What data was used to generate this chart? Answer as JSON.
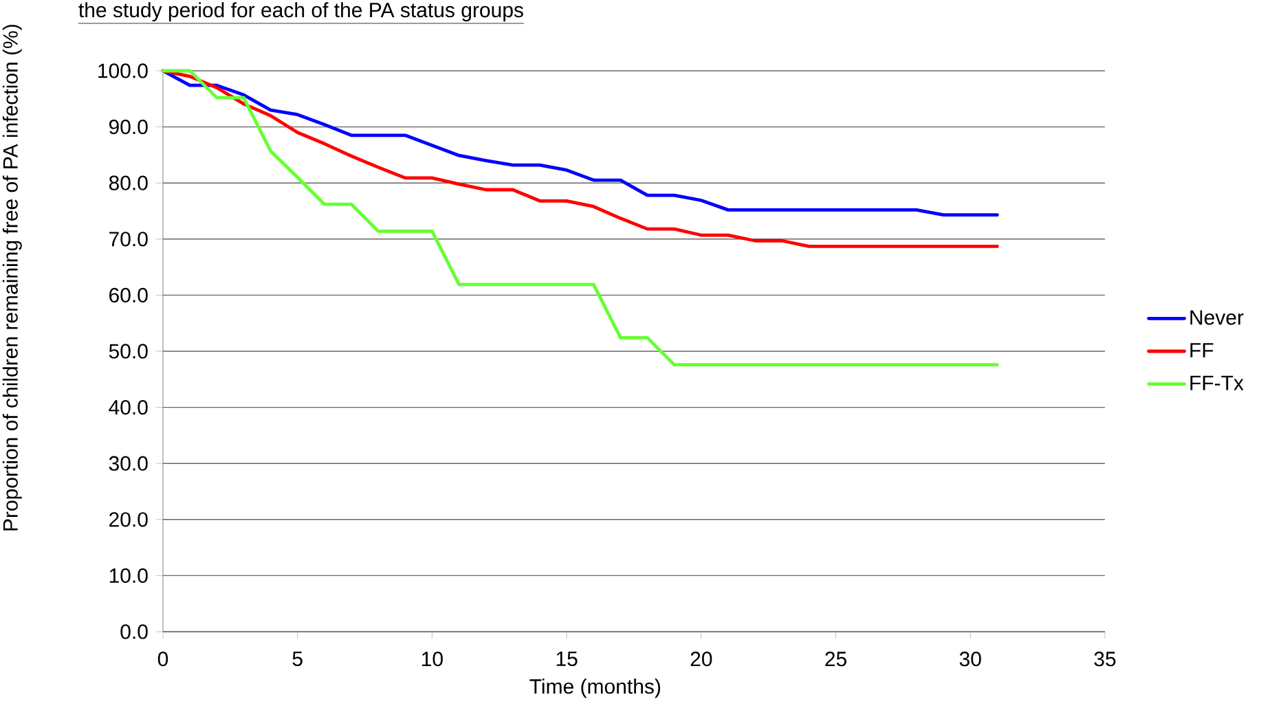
{
  "chart_data": {
    "type": "line",
    "title": "the study period for each of the PA status groups",
    "xlabel": "Time (months)",
    "ylabel": "Proportion of children remaining free of PA infection (%)",
    "x": [
      0,
      1,
      2,
      3,
      4,
      5,
      6,
      7,
      8,
      9,
      10,
      11,
      12,
      13,
      14,
      15,
      16,
      17,
      18,
      19,
      20,
      21,
      22,
      23,
      24,
      25,
      26,
      27,
      28,
      29,
      30,
      31
    ],
    "series": [
      {
        "name": "Never",
        "color": "#0000ff",
        "values": [
          100,
          97.4,
          97.4,
          95.7,
          93.0,
          92.2,
          90.4,
          88.5,
          88.5,
          88.5,
          86.7,
          84.9,
          84.0,
          83.2,
          83.2,
          82.3,
          80.5,
          80.5,
          77.8,
          77.8,
          76.9,
          75.2,
          75.2,
          75.2,
          75.2,
          75.2,
          75.2,
          75.2,
          75.2,
          74.3,
          74.3,
          74.3
        ]
      },
      {
        "name": "FF",
        "color": "#ff0000",
        "values": [
          100,
          99.0,
          97.0,
          94.1,
          92.0,
          89.0,
          87.0,
          84.8,
          82.8,
          80.9,
          80.9,
          79.8,
          78.8,
          78.8,
          76.8,
          76.8,
          75.8,
          73.7,
          71.8,
          71.8,
          70.7,
          70.7,
          69.7,
          69.7,
          68.7,
          68.7,
          68.7,
          68.7,
          68.7,
          68.7,
          68.7,
          68.7
        ]
      },
      {
        "name": "FF-Tx",
        "color": "#66ff33",
        "values": [
          100,
          100,
          95.2,
          95.2,
          85.7,
          81.0,
          76.2,
          76.2,
          71.4,
          71.4,
          71.4,
          61.9,
          61.9,
          61.9,
          61.9,
          61.9,
          61.9,
          52.4,
          52.4,
          47.6,
          47.6,
          47.6,
          47.6,
          47.6,
          47.6,
          47.6,
          47.6,
          47.6,
          47.6,
          47.6,
          47.6,
          47.6
        ]
      }
    ],
    "xlim": [
      0,
      35
    ],
    "xticks": [
      0,
      5,
      10,
      15,
      20,
      25,
      30,
      35
    ],
    "ylim": [
      0,
      100
    ],
    "yticks": [
      {
        "value": 0,
        "label": "0.0"
      },
      {
        "value": 10,
        "label": "10.0"
      },
      {
        "value": 20,
        "label": "20.0"
      },
      {
        "value": 30,
        "label": "30.0"
      },
      {
        "value": 40,
        "label": "40.0"
      },
      {
        "value": 50,
        "label": "50.0"
      },
      {
        "value": 60,
        "label": "60.0"
      },
      {
        "value": 70,
        "label": "70.0"
      },
      {
        "value": 80,
        "label": "80.0"
      },
      {
        "value": 90,
        "label": "90.0"
      },
      {
        "value": 100,
        "label": "100.0"
      }
    ],
    "grid": "y",
    "legend": "right",
    "marker": "none",
    "line_style": "solid"
  }
}
